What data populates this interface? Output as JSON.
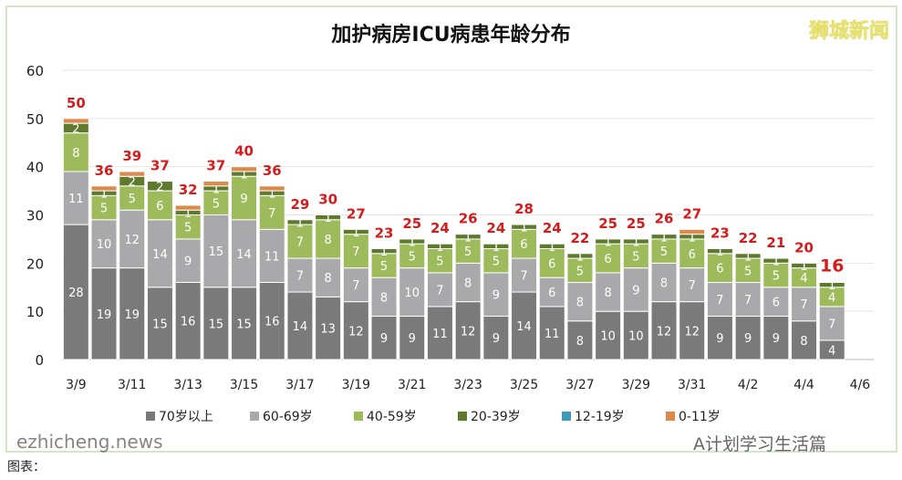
{
  "chart_data": {
    "type": "stacked-bar",
    "title": "加护病房ICU病患年龄分布",
    "ylim": [
      0,
      60
    ],
    "yticks": [
      0,
      10,
      20,
      30,
      40,
      50,
      60
    ],
    "grid": true,
    "legend_position": "bottom",
    "categories": [
      "3/9",
      "3/10",
      "3/11",
      "3/12",
      "3/13",
      "3/14",
      "3/15",
      "3/16",
      "3/17",
      "3/18",
      "3/19",
      "3/20",
      "3/21",
      "3/22",
      "3/23",
      "3/24",
      "3/25",
      "3/26",
      "3/27",
      "3/28",
      "3/29",
      "3/30",
      "3/31",
      "4/1",
      "4/2",
      "4/3",
      "4/4",
      "4/5",
      "4/6"
    ],
    "xtick_labels": [
      "3/9",
      "3/11",
      "3/13",
      "3/15",
      "3/17",
      "3/19",
      "3/21",
      "3/23",
      "3/25",
      "3/27",
      "3/29",
      "3/31",
      "4/2",
      "4/4",
      "4/6"
    ],
    "series": [
      {
        "name": "70岁以上",
        "color": "#7a7a7a",
        "values": [
          28,
          19,
          19,
          15,
          16,
          15,
          15,
          16,
          14,
          13,
          12,
          9,
          9,
          11,
          12,
          9,
          14,
          11,
          8,
          10,
          10,
          12,
          12,
          9,
          9,
          9,
          8,
          4,
          null
        ]
      },
      {
        "name": "60-69岁",
        "color": "#a9a9ab",
        "values": [
          11,
          10,
          12,
          14,
          9,
          15,
          14,
          11,
          7,
          8,
          7,
          8,
          10,
          7,
          8,
          9,
          7,
          6,
          8,
          8,
          9,
          8,
          7,
          7,
          7,
          6,
          7,
          7,
          null
        ]
      },
      {
        "name": "40-59岁",
        "color": "#9dbb5b",
        "values": [
          8,
          5,
          5,
          6,
          5,
          5,
          9,
          7,
          7,
          8,
          7,
          5,
          5,
          5,
          5,
          5,
          6,
          6,
          5,
          6,
          5,
          5,
          6,
          6,
          5,
          5,
          4,
          4,
          null
        ]
      },
      {
        "name": "20-39岁",
        "color": "#5f7a2e",
        "values": [
          2,
          1,
          2,
          2,
          1,
          1,
          1,
          1,
          1,
          1,
          1,
          1,
          1,
          1,
          1,
          1,
          1,
          1,
          1,
          1,
          1,
          1,
          1,
          1,
          1,
          1,
          1,
          1,
          null
        ]
      },
      {
        "name": "12-19岁",
        "color": "#3c9ab8",
        "values": [
          0,
          0,
          0,
          0,
          0,
          0,
          0,
          0,
          0,
          0,
          0,
          0,
          0,
          0,
          0,
          0,
          0,
          0,
          0,
          0,
          0,
          0,
          0,
          0,
          0,
          0,
          0,
          0,
          null
        ]
      },
      {
        "name": "0-11岁",
        "color": "#db8a4c",
        "values": [
          1,
          1,
          1,
          0,
          1,
          1,
          1,
          1,
          0,
          0,
          0,
          0,
          0,
          0,
          0,
          0,
          0,
          0,
          0,
          0,
          0,
          0,
          1,
          0,
          0,
          0,
          0,
          0,
          null
        ]
      }
    ],
    "totals": [
      50,
      36,
      39,
      37,
      32,
      37,
      40,
      36,
      29,
      30,
      27,
      23,
      25,
      24,
      26,
      24,
      28,
      24,
      22,
      25,
      25,
      26,
      27,
      23,
      22,
      21,
      20,
      16,
      null
    ]
  },
  "watermarks": {
    "logo": "狮城新闻",
    "site": "ezhicheng.news",
    "wechat": "A计划学习生活篇",
    "source": "图表："
  }
}
